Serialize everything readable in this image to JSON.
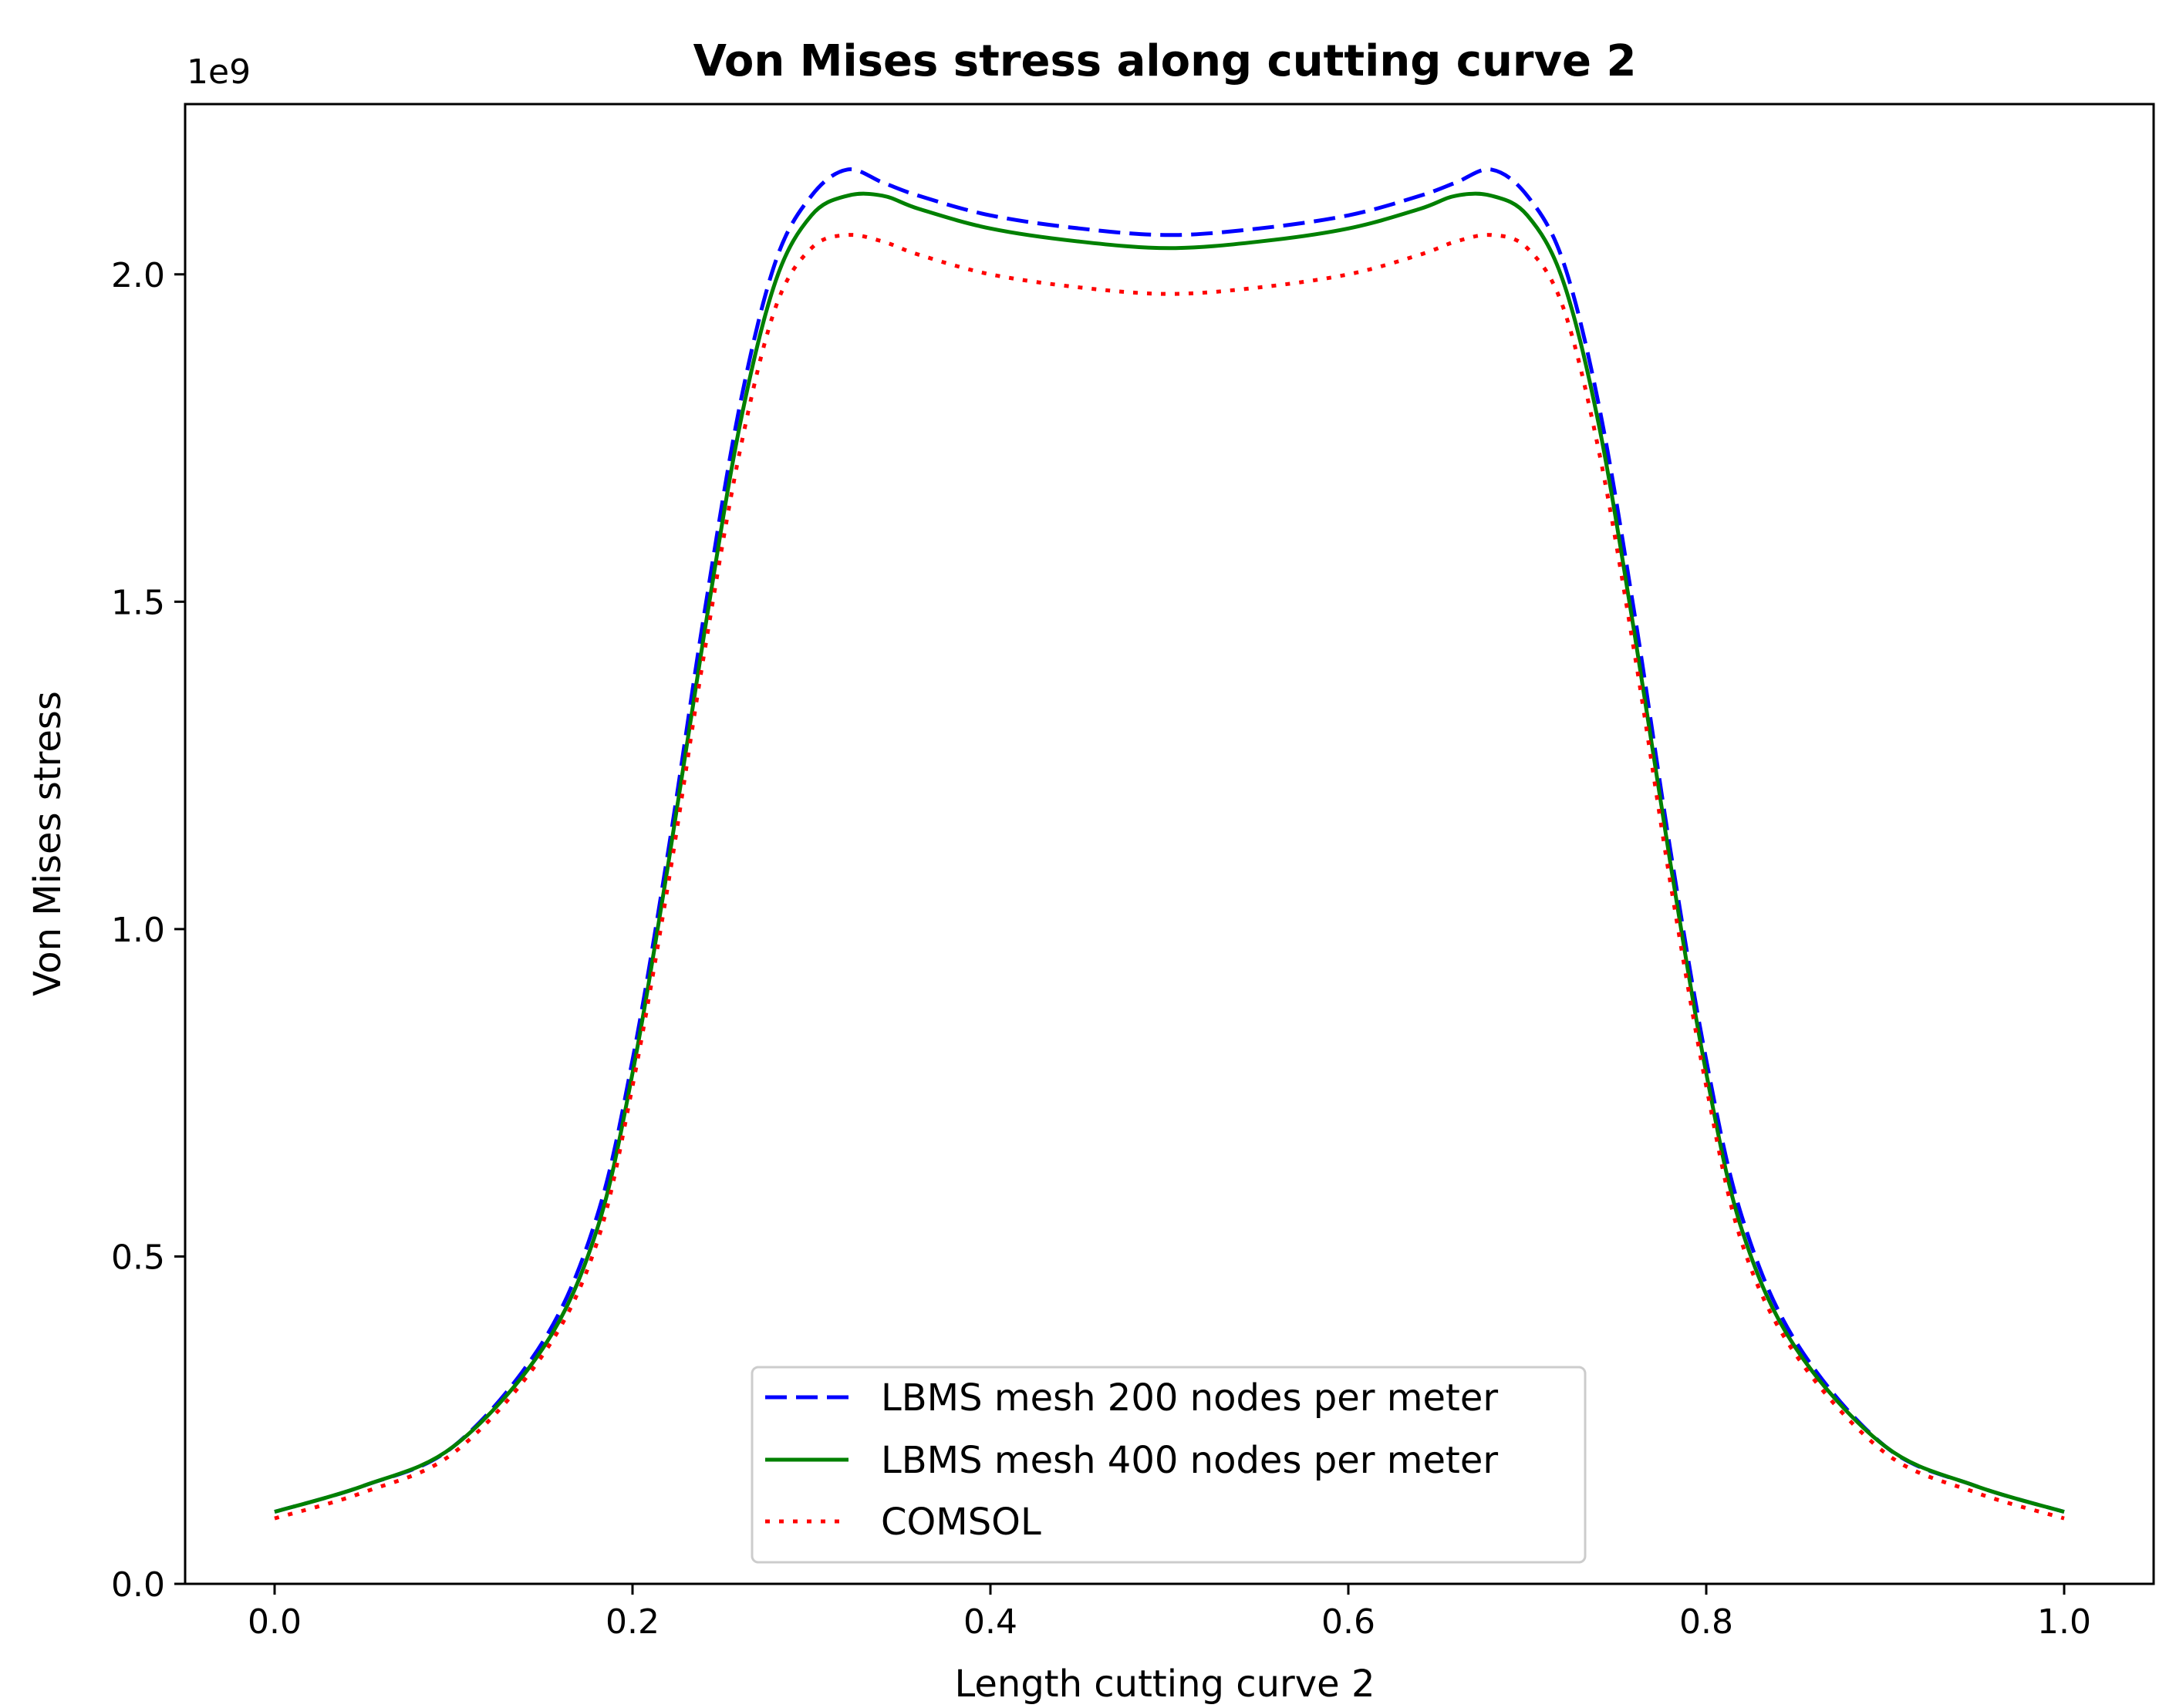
{
  "chart_data": {
    "type": "line",
    "title": "Von Mises stress along cutting curve 2",
    "xlabel": "Length cutting curve 2",
    "ylabel": "Von Mises stress",
    "y_offset_label": "1e9",
    "xlim": [
      -0.05,
      1.05
    ],
    "ylim": [
      0.0,
      2.26
    ],
    "x_ticks": [
      0.0,
      0.2,
      0.4,
      0.6,
      0.8,
      1.0
    ],
    "x_tick_labels": [
      "0.0",
      "0.2",
      "0.4",
      "0.6",
      "0.8",
      "1.0"
    ],
    "y_ticks": [
      0.0,
      0.5,
      1.0,
      1.5,
      2.0
    ],
    "y_tick_labels": [
      "0.0",
      "0.5",
      "1.0",
      "1.5",
      "2.0"
    ],
    "grid": false,
    "legend_position": "bottom-center",
    "x": [
      0.0,
      0.05,
      0.1,
      0.15,
      0.18,
      0.2,
      0.22,
      0.24,
      0.26,
      0.28,
      0.3,
      0.32,
      0.34,
      0.36,
      0.4,
      0.45,
      0.5,
      0.55,
      0.6,
      0.64,
      0.66,
      0.68,
      0.7,
      0.72,
      0.74,
      0.76,
      0.78,
      0.8,
      0.82,
      0.85,
      0.9,
      0.95,
      1.0
    ],
    "series": [
      {
        "name": "LBMS mesh 200 nodes per meter",
        "color": "#0000ff",
        "style": "dashed",
        "values": [
          0.11,
          0.15,
          0.21,
          0.37,
          0.56,
          0.8,
          1.12,
          1.48,
          1.8,
          2.02,
          2.12,
          2.16,
          2.14,
          2.12,
          2.09,
          2.07,
          2.06,
          2.07,
          2.09,
          2.12,
          2.14,
          2.16,
          2.12,
          2.02,
          1.8,
          1.48,
          1.12,
          0.8,
          0.56,
          0.37,
          0.21,
          0.15,
          0.11
        ]
      },
      {
        "name": "LBMS mesh 400 nodes per meter",
        "color": "#008000",
        "style": "solid",
        "values": [
          0.11,
          0.15,
          0.21,
          0.36,
          0.54,
          0.78,
          1.1,
          1.45,
          1.77,
          1.99,
          2.09,
          2.12,
          2.12,
          2.1,
          2.07,
          2.05,
          2.04,
          2.05,
          2.07,
          2.1,
          2.12,
          2.12,
          2.09,
          1.99,
          1.77,
          1.45,
          1.1,
          0.78,
          0.54,
          0.36,
          0.21,
          0.15,
          0.11
        ]
      },
      {
        "name": "COMSOL",
        "color": "#ff0000",
        "style": "dotted",
        "values": [
          0.1,
          0.14,
          0.2,
          0.35,
          0.52,
          0.76,
          1.07,
          1.42,
          1.73,
          1.95,
          2.04,
          2.06,
          2.05,
          2.03,
          2.0,
          1.98,
          1.97,
          1.98,
          2.0,
          2.03,
          2.05,
          2.06,
          2.04,
          1.95,
          1.73,
          1.42,
          1.07,
          0.76,
          0.52,
          0.35,
          0.2,
          0.14,
          0.1
        ]
      }
    ]
  }
}
